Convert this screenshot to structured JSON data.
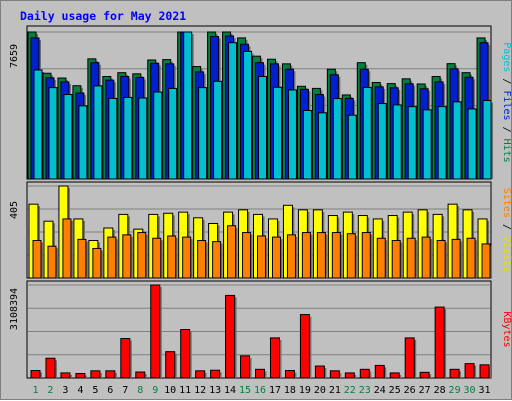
{
  "chart_data": {
    "type": "bar",
    "title": "Daily usage for May 2021",
    "categories": [
      "1",
      "2",
      "3",
      "4",
      "5",
      "6",
      "7",
      "8",
      "9",
      "10",
      "11",
      "12",
      "13",
      "14",
      "15",
      "16",
      "17",
      "18",
      "19",
      "20",
      "21",
      "22",
      "23",
      "24",
      "25",
      "26",
      "27",
      "28",
      "29",
      "30",
      "31"
    ],
    "weekend_days": [
      "1",
      "2",
      "8",
      "9",
      "15",
      "16",
      "22",
      "23",
      "29",
      "30"
    ],
    "panels": [
      {
        "id": "traffic",
        "max_label": "7659",
        "ylim": [
          0,
          7659
        ],
        "right_labels": [
          {
            "text": "Pages",
            "color": "#00c0d0"
          },
          {
            "text": " / ",
            "color": "#000000"
          },
          {
            "text": "Files",
            "color": "#0020d0"
          },
          {
            "text": " / ",
            "color": "#000000"
          },
          {
            "text": "Hits",
            "color": "#008040"
          }
        ],
        "series": [
          {
            "name": "Hits",
            "color": "#008040",
            "values": [
              7659,
              5510,
              5260,
              4860,
              6260,
              5340,
              5540,
              5480,
              6200,
              6220,
              7659,
              5860,
              7659,
              7659,
              7350,
              6400,
              6240,
              6000,
              4830,
              4720,
              5720,
              4380,
              6060,
              5030,
              4970,
              5220,
              4950,
              5340,
              6010,
              5540,
              7350
            ]
          },
          {
            "name": "Files",
            "color": "#0020d0",
            "values": [
              7350,
              5270,
              5060,
              4480,
              6060,
              5150,
              5340,
              5290,
              6030,
              6000,
              7659,
              5580,
              7420,
              7450,
              7020,
              6060,
              6000,
              5720,
              4670,
              4400,
              5430,
              4200,
              5720,
              4800,
              4750,
              4960,
              4700,
              5060,
              5740,
              5300,
              7100
            ]
          },
          {
            "name": "Pages",
            "color": "#00c0d0",
            "values": [
              5680,
              4760,
              4400,
              3810,
              4850,
              4200,
              4250,
              4220,
              4530,
              4720,
              7659,
              4760,
              5090,
              7100,
              6650,
              5340,
              4780,
              4640,
              3570,
              3450,
              4190,
              3320,
              4770,
              3930,
              3860,
              3770,
              3600,
              3770,
              4020,
              3650,
              4090
            ]
          }
        ]
      },
      {
        "id": "visits",
        "max_label": "405",
        "ylim": [
          0,
          405
        ],
        "right_labels": [
          {
            "text": "Sites",
            "color": "#ff8000"
          },
          {
            "text": " / ",
            "color": "#000000"
          },
          {
            "text": "Visits",
            "color": "#e0e000"
          }
        ],
        "series": [
          {
            "name": "Visits",
            "color": "#ffff00",
            "values": [
              325,
              250,
              405,
              260,
              165,
              220,
              280,
              215,
              280,
              285,
              290,
              265,
              240,
              290,
              300,
              280,
              260,
              320,
              300,
              300,
              275,
              290,
              275,
              260,
              275,
              290,
              300,
              280,
              325,
              300,
              260
            ]
          },
          {
            "name": "Sites",
            "color": "#ff8000",
            "values": [
              165,
              140,
              260,
              170,
              130,
              180,
              190,
              200,
              175,
              185,
              180,
              165,
              160,
              230,
              200,
              185,
              180,
              190,
              200,
              200,
              200,
              195,
              200,
              175,
              165,
              175,
              180,
              165,
              170,
              175,
              150
            ]
          }
        ]
      },
      {
        "id": "kbytes",
        "max_label": "3108394",
        "ylim": [
          0,
          3108394
        ],
        "right_labels": [
          {
            "text": "KBytes",
            "color": "#ff0000"
          }
        ],
        "series": [
          {
            "name": "KBytes",
            "color": "#ff0000",
            "values": [
              250000,
              660000,
              170000,
              150000,
              240000,
              240000,
              1320000,
              200000,
              3108394,
              880000,
              1620000,
              240000,
              260000,
              2760000,
              740000,
              290000,
              1340000,
              250000,
              2120000,
              400000,
              240000,
              170000,
              290000,
              420000,
              170000,
              1340000,
              190000,
              2370000,
              290000,
              480000,
              440000
            ]
          }
        ]
      }
    ]
  }
}
